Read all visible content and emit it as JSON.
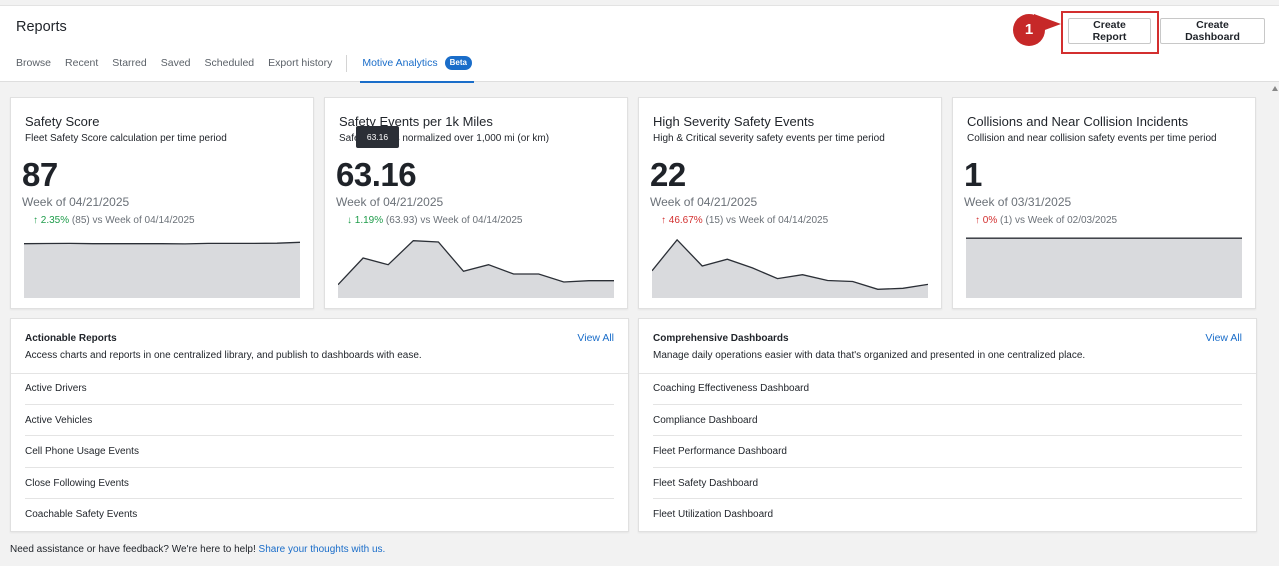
{
  "header": {
    "title": "Reports",
    "tabs": [
      {
        "label": "Browse"
      },
      {
        "label": "Recent"
      },
      {
        "label": "Starred"
      },
      {
        "label": "Saved"
      },
      {
        "label": "Scheduled"
      },
      {
        "label": "Export history"
      }
    ],
    "active_tab": {
      "label": "Motive Analytics",
      "badge": "Beta"
    },
    "create_report_label": "Create Report",
    "create_dashboard_label": "Create Dashboard",
    "step_marker": "1"
  },
  "colors": {
    "accent": "#1a6dc9",
    "positive": "#1e9c4a",
    "negative": "#d32f2f",
    "marker": "#c62828",
    "sparkline_fill": "#d9dadd",
    "sparkline_stroke": "#2b2f36"
  },
  "metrics": [
    {
      "title": "Safety Score",
      "subtitle": "Fleet Safety Score calculation per time period",
      "value": "87",
      "week": "Week of 04/21/2025",
      "change_arrow": "↑",
      "change_pct": "2.35%",
      "change_rest": "(85) vs Week of 04/14/2025",
      "trend": [
        84.9,
        85.1,
        85.3,
        84.9,
        84.8,
        84.9,
        84.8,
        84.6,
        85.3,
        85.3,
        85.3,
        85.6,
        87
      ],
      "y_range": [
        0,
        100
      ]
    },
    {
      "title": "Safety Events per 1k Miles",
      "subtitle": "Safety events normalized over 1,000 mi (or km)",
      "value": "63.16",
      "week": "Week of 04/21/2025",
      "change_arrow": "↓",
      "change_pct": "1.19%",
      "change_rest": "(63.93) vs Week of 04/14/2025",
      "tooltip": "63.16",
      "trend": [
        50,
        70,
        65,
        83,
        82,
        60,
        65,
        58,
        58,
        52,
        53,
        53
      ],
      "y_range": [
        40,
        88
      ]
    },
    {
      "title": "High Severity Safety Events",
      "subtitle": "High & Critical severity safety events per time period",
      "value": "22",
      "week": "Week of 04/21/2025",
      "change_arrow": "↑",
      "change_pct": "46.67%",
      "change_rest": "(15) vs Week of 04/14/2025",
      "trend": [
        28,
        60,
        33,
        40,
        31,
        20,
        24,
        18,
        17,
        9,
        10,
        14
      ],
      "y_range": [
        0,
        66
      ]
    },
    {
      "title": "Collisions and Near Collision Incidents",
      "subtitle": "Collision and near collision safety events per time period",
      "value": "1",
      "week": "Week of 03/31/2025",
      "change_arrow": "↑",
      "change_pct": "0%",
      "change_rest": "(1) vs Week of 02/03/2025",
      "trend": [
        1,
        1,
        1,
        1,
        1,
        1,
        1,
        1,
        1,
        1,
        1,
        1
      ],
      "y_range": [
        0,
        1.07
      ]
    }
  ],
  "reports": {
    "title": "Actionable Reports",
    "description": "Access charts and reports in one centralized library, and publish to dashboards with ease.",
    "view_all": "View All",
    "items": [
      "Active Drivers",
      "Active Vehicles",
      "Cell Phone Usage Events",
      "Close Following Events",
      "Coachable Safety Events"
    ]
  },
  "dashboards": {
    "title": "Comprehensive Dashboards",
    "description": "Manage daily operations easier with data that's organized and presented in one centralized place.",
    "view_all": "View All",
    "items": [
      "Coaching Effectiveness Dashboard",
      "Compliance Dashboard",
      "Fleet Performance Dashboard",
      "Fleet Safety Dashboard",
      "Fleet Utilization Dashboard"
    ]
  },
  "footer": {
    "text": "Need assistance or have feedback? We're here to help!",
    "link": "Share your thoughts with us."
  }
}
